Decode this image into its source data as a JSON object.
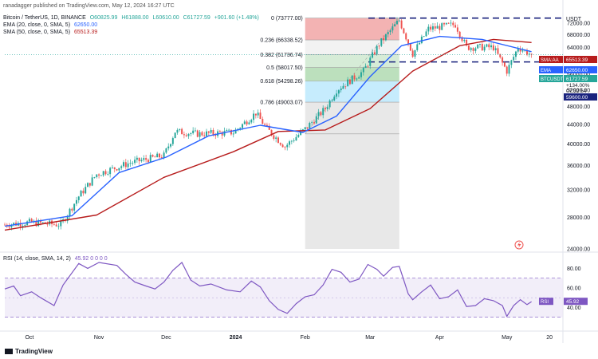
{
  "header": {
    "publisher": "ranadagger published on TradingView.com, May 12, 2024 16:27 UTC",
    "symbol_line": "Bitcoin / TetherUS, 1D, BINANCE",
    "ohlc": {
      "o": "O60825.99",
      "h": "H61888.00",
      "l": "L60610.00",
      "c": "C61727.59",
      "chg": "+901.60 (+1.48%)"
    },
    "ema_line": {
      "label": "EMA (20, close, 0, SMA, 5)",
      "value": "62650.00"
    },
    "sma_line": {
      "label": "SMA (50, close, 0, SMA, 5)",
      "value": "65513.39"
    },
    "currency": "USDT",
    "rsi_line": {
      "label": "RSI (14, close, SMA, 14, 2)",
      "values": "45.92  0  0  0  0"
    }
  },
  "footer": {
    "brand": "TradingView"
  },
  "colors": {
    "up": "#26a69a",
    "down": "#ef5350",
    "ema": "#2962ff",
    "sma": "#b71c1c",
    "rsi": "#7e57c2",
    "level": "#1a237e"
  },
  "chart_data": [
    {
      "type": "candlestick",
      "title": "Bitcoin / TetherUS, 1D, BINANCE",
      "y_scale": "log",
      "ylim": [
        24000,
        76000
      ],
      "y_ticks": [
        24000,
        28000,
        32000,
        36000,
        40000,
        44000,
        48000,
        52000,
        56000,
        60000,
        64000,
        68000,
        72000
      ],
      "x_ticks": [
        "Oct",
        "Nov",
        "Dec",
        "2024",
        "Feb",
        "Mar",
        "Apr",
        "May",
        "20"
      ],
      "close_series": [
        {
          "date": "2023-09-20",
          "close": 27000
        },
        {
          "date": "2023-10-01",
          "close": 27300
        },
        {
          "date": "2023-10-15",
          "close": 27000
        },
        {
          "date": "2023-10-23",
          "close": 31000
        },
        {
          "date": "2023-10-31",
          "close": 34500
        },
        {
          "date": "2023-11-15",
          "close": 36500
        },
        {
          "date": "2023-11-30",
          "close": 37800
        },
        {
          "date": "2023-12-05",
          "close": 42500
        },
        {
          "date": "2023-12-15",
          "close": 42000
        },
        {
          "date": "2023-12-31",
          "close": 42300
        },
        {
          "date": "2024-01-10",
          "close": 46500
        },
        {
          "date": "2024-01-15",
          "close": 43000
        },
        {
          "date": "2024-01-23",
          "close": 39500
        },
        {
          "date": "2024-02-01",
          "close": 43000
        },
        {
          "date": "2024-02-10",
          "close": 47500
        },
        {
          "date": "2024-02-15",
          "close": 52000
        },
        {
          "date": "2024-02-27",
          "close": 57000
        },
        {
          "date": "2024-03-05",
          "close": 65000
        },
        {
          "date": "2024-03-14",
          "close": 73000
        },
        {
          "date": "2024-03-20",
          "close": 62000
        },
        {
          "date": "2024-03-27",
          "close": 70000
        },
        {
          "date": "2024-04-08",
          "close": 71500
        },
        {
          "date": "2024-04-13",
          "close": 64000
        },
        {
          "date": "2024-04-25",
          "close": 64000
        },
        {
          "date": "2024-05-01",
          "close": 57000
        },
        {
          "date": "2024-05-06",
          "close": 64000
        },
        {
          "date": "2024-05-12",
          "close": 61727
        }
      ],
      "ema20_series": [
        {
          "date": "2023-09-20",
          "value": 26800
        },
        {
          "date": "2023-10-20",
          "value": 28200
        },
        {
          "date": "2023-11-10",
          "value": 34800
        },
        {
          "date": "2023-12-01",
          "value": 37500
        },
        {
          "date": "2023-12-20",
          "value": 41600
        },
        {
          "date": "2024-01-12",
          "value": 43800
        },
        {
          "date": "2024-01-31",
          "value": 42300
        },
        {
          "date": "2024-02-15",
          "value": 45800
        },
        {
          "date": "2024-03-01",
          "value": 55500
        },
        {
          "date": "2024-03-15",
          "value": 64500
        },
        {
          "date": "2024-04-01",
          "value": 67500
        },
        {
          "date": "2024-04-20",
          "value": 66500
        },
        {
          "date": "2024-05-12",
          "value": 62650
        }
      ],
      "sma50_series": [
        {
          "date": "2023-09-20",
          "value": 26300
        },
        {
          "date": "2023-10-31",
          "value": 28300
        },
        {
          "date": "2023-11-30",
          "value": 34000
        },
        {
          "date": "2023-12-31",
          "value": 38500
        },
        {
          "date": "2024-01-20",
          "value": 42500
        },
        {
          "date": "2024-02-10",
          "value": 42800
        },
        {
          "date": "2024-03-01",
          "value": 47500
        },
        {
          "date": "2024-03-20",
          "value": 57000
        },
        {
          "date": "2024-04-10",
          "value": 64500
        },
        {
          "date": "2024-04-25",
          "value": 66500
        },
        {
          "date": "2024-05-12",
          "value": 65513
        }
      ],
      "fib_retracement": {
        "levels": [
          {
            "ratio": "0",
            "price": 73777.0,
            "label": "0 (73777.00)",
            "color": "#ef9a9a"
          },
          {
            "ratio": "0.236",
            "price": 66338.52,
            "label": "0.236 (66338.52)",
            "color": "#eeeeee"
          },
          {
            "ratio": "0.382",
            "price": 61736.74,
            "label": "0.382 (61736.74)",
            "color": "#c8e6c9"
          },
          {
            "ratio": "0.5",
            "price": 58017.5,
            "label": "0.5 (58017.50)",
            "color": "#a5d6a7"
          },
          {
            "ratio": "0.618",
            "price": 54298.26,
            "label": "0.618 (54298.26)",
            "color": "#b3e5fc"
          },
          {
            "ratio": "0.786",
            "price": 49003.07,
            "label": "0.786 (49003.07)",
            "color": "#e0e0e0"
          },
          {
            "ratio": "1",
            "price": 42000,
            "label": "",
            "color": "#9fa8da"
          }
        ],
        "from_date": "2024-02-01",
        "to_date": "2024-03-14"
      },
      "horizontal_levels": [
        {
          "price": 73777,
          "style": "dashed"
        },
        {
          "price": 59600,
          "style": "dashed",
          "label": "59600.00"
        }
      ],
      "price_labels": [
        {
          "text": "72000.00",
          "price": 72000,
          "role": "tick-top",
          "color": "#131722"
        },
        {
          "text": "SMA:AA",
          "price": 65513.39,
          "value": "65513.39",
          "color": "#b71c1c"
        },
        {
          "text": "EMA",
          "price": 62650,
          "value": "62650.00",
          "color": "#2962ff"
        },
        {
          "text": "BTCUSDT",
          "price": 61727.59,
          "value": "61727.59",
          "color": "#26a69a"
        },
        {
          "text": "+134.00%",
          "price": 60300,
          "color": "#131722"
        },
        {
          "text": "07:32:54",
          "price": 59800,
          "color": "#131722"
        },
        {
          "text": "59600.00",
          "price": 59600,
          "color": "#1a237e"
        }
      ]
    },
    {
      "type": "line",
      "title": "RSI (14, close, SMA, 14, 2)",
      "ylim": [
        20,
        95
      ],
      "y_ticks": [
        40,
        60,
        80
      ],
      "bands": [
        30,
        70
      ],
      "last_value": 45.92,
      "series": [
        {
          "date": "2023-09-20",
          "value": 59
        },
        {
          "date": "2023-09-24",
          "value": 62
        },
        {
          "date": "2023-09-27",
          "value": 52
        },
        {
          "date": "2023-10-02",
          "value": 56
        },
        {
          "date": "2023-10-06",
          "value": 50
        },
        {
          "date": "2023-10-12",
          "value": 42
        },
        {
          "date": "2023-10-16",
          "value": 63
        },
        {
          "date": "2023-10-23",
          "value": 85
        },
        {
          "date": "2023-10-27",
          "value": 80
        },
        {
          "date": "2023-11-01",
          "value": 86
        },
        {
          "date": "2023-11-09",
          "value": 83
        },
        {
          "date": "2023-11-13",
          "value": 74
        },
        {
          "date": "2023-11-17",
          "value": 66
        },
        {
          "date": "2023-11-22",
          "value": 62
        },
        {
          "date": "2023-11-26",
          "value": 59
        },
        {
          "date": "2023-11-30",
          "value": 66
        },
        {
          "date": "2023-12-04",
          "value": 78
        },
        {
          "date": "2023-12-08",
          "value": 86
        },
        {
          "date": "2023-12-12",
          "value": 68
        },
        {
          "date": "2023-12-16",
          "value": 62
        },
        {
          "date": "2023-12-21",
          "value": 64
        },
        {
          "date": "2023-12-28",
          "value": 58
        },
        {
          "date": "2024-01-03",
          "value": 56
        },
        {
          "date": "2024-01-08",
          "value": 67
        },
        {
          "date": "2024-01-12",
          "value": 61
        },
        {
          "date": "2024-01-16",
          "value": 47
        },
        {
          "date": "2024-01-20",
          "value": 38
        },
        {
          "date": "2024-01-24",
          "value": 34
        },
        {
          "date": "2024-01-28",
          "value": 44
        },
        {
          "date": "2024-02-01",
          "value": 51
        },
        {
          "date": "2024-02-05",
          "value": 53
        },
        {
          "date": "2024-02-09",
          "value": 63
        },
        {
          "date": "2024-02-13",
          "value": 79
        },
        {
          "date": "2024-02-17",
          "value": 76
        },
        {
          "date": "2024-02-21",
          "value": 66
        },
        {
          "date": "2024-02-25",
          "value": 69
        },
        {
          "date": "2024-02-29",
          "value": 84
        },
        {
          "date": "2024-03-04",
          "value": 79
        },
        {
          "date": "2024-03-07",
          "value": 72
        },
        {
          "date": "2024-03-11",
          "value": 81
        },
        {
          "date": "2024-03-14",
          "value": 82
        },
        {
          "date": "2024-03-18",
          "value": 54
        },
        {
          "date": "2024-03-20",
          "value": 48
        },
        {
          "date": "2024-03-24",
          "value": 56
        },
        {
          "date": "2024-03-28",
          "value": 63
        },
        {
          "date": "2024-04-01",
          "value": 49
        },
        {
          "date": "2024-04-05",
          "value": 51
        },
        {
          "date": "2024-04-09",
          "value": 58
        },
        {
          "date": "2024-04-13",
          "value": 41
        },
        {
          "date": "2024-04-17",
          "value": 42
        },
        {
          "date": "2024-04-21",
          "value": 49
        },
        {
          "date": "2024-04-25",
          "value": 47
        },
        {
          "date": "2024-04-29",
          "value": 42
        },
        {
          "date": "2024-05-01",
          "value": 31
        },
        {
          "date": "2024-05-04",
          "value": 42
        },
        {
          "date": "2024-05-07",
          "value": 48
        },
        {
          "date": "2024-05-10",
          "value": 43
        },
        {
          "date": "2024-05-12",
          "value": 46
        }
      ]
    }
  ]
}
